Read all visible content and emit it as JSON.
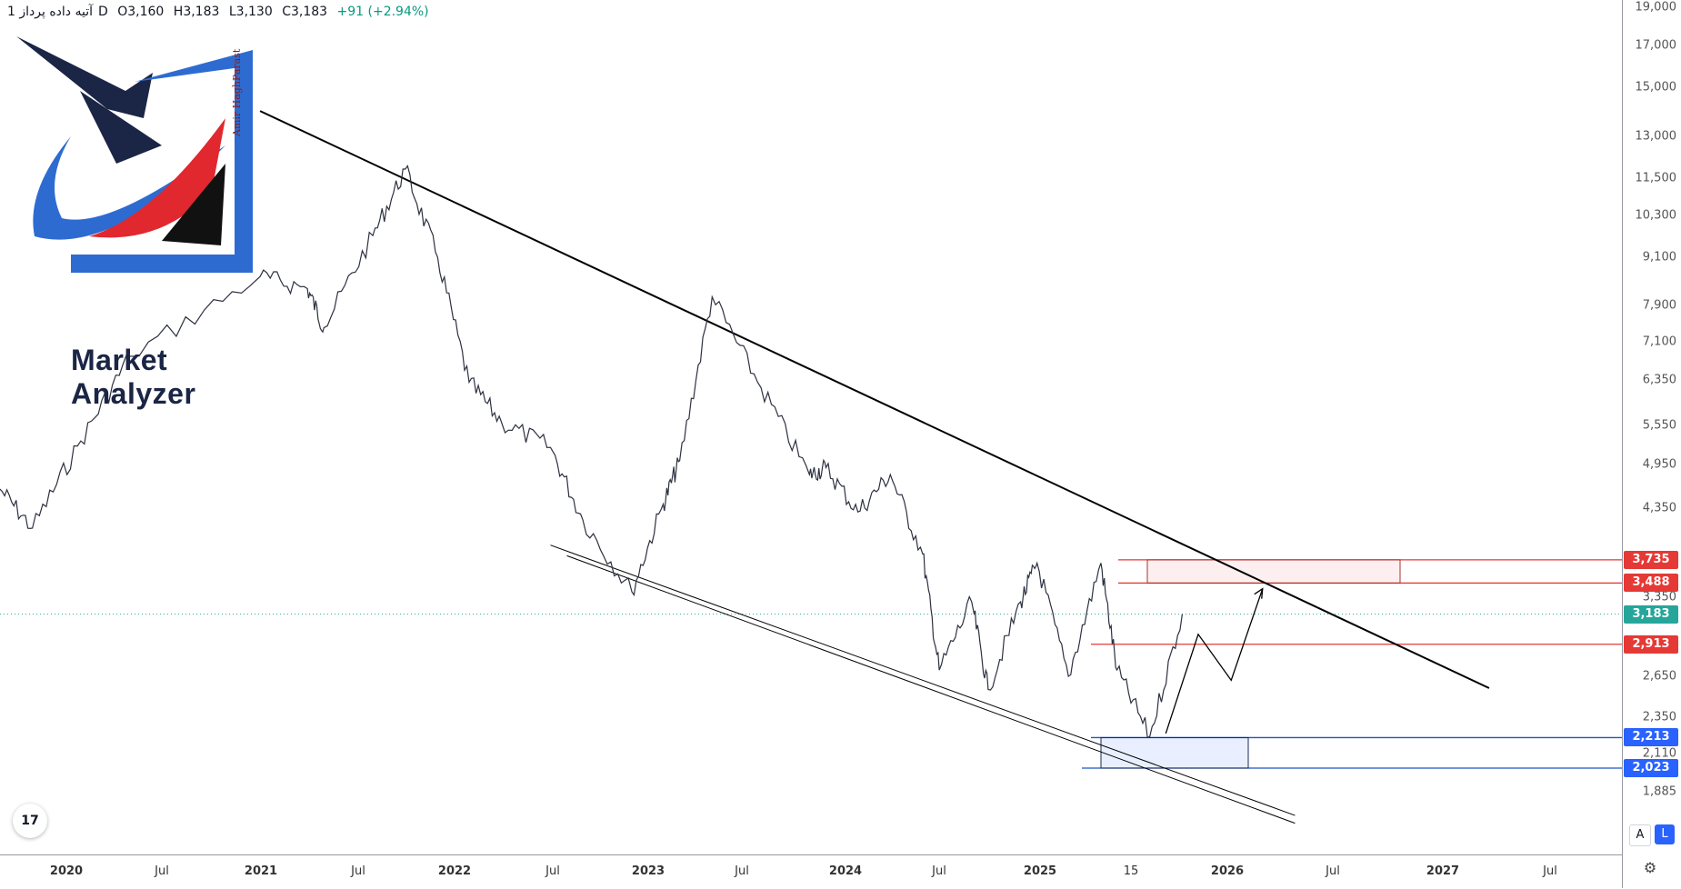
{
  "header": {
    "symbol": "آتیه داده پرداز",
    "interval": "1D",
    "open": "O3,160",
    "high": "H3,183",
    "low": "L3,130",
    "close": "C3,183",
    "change": "+91 (+2.94%)"
  },
  "logo": {
    "brand": "Market Analyzer",
    "author": "Amir HaghParast"
  },
  "buttons": {
    "auto": "A",
    "log": "L"
  },
  "tv_logo": "17",
  "colors": {
    "accent": "#2962ff",
    "red": "#e53935",
    "blue": "#1e55c8",
    "teal": "#26a69a",
    "trend": "#000000"
  },
  "chart_data": {
    "type": "line",
    "scale": "log",
    "ylim": [
      1700,
      19000
    ],
    "y_ticks": [
      "19,000",
      "17,000",
      "15,000",
      "13,000",
      "11,500",
      "10,300",
      "9,100",
      "7,900",
      "7,100",
      "6,350",
      "5,550",
      "4,950",
      "4,350",
      "3,350",
      "2,650",
      "2,350",
      "2,110",
      "1,885"
    ],
    "x_ticks": [
      "2020",
      "Jul",
      "2021",
      "Jul",
      "2022",
      "Jul",
      "2023",
      "Jul",
      "2024",
      "Jul",
      "2025",
      "15",
      "2026",
      "Jul",
      "2027",
      "Jul"
    ],
    "x": [
      "2019-10",
      "2019-12",
      "2020-03",
      "2020-06",
      "2021-02",
      "2021-05",
      "2021-06",
      "2021-09",
      "2021-11",
      "2022-01",
      "2022-03",
      "2022-05",
      "2022-08",
      "2022-10",
      "2023-01",
      "2023-03",
      "2023-04",
      "2023-06",
      "2023-09",
      "2023-12",
      "2024-01",
      "2024-03",
      "2024-05",
      "2024-07",
      "2024-08",
      "2024-10",
      "2024-11",
      "2025-01",
      "2025-02",
      "2025-04",
      "2025-06",
      "2025-07",
      "2025-09",
      "2025-11"
    ],
    "series": [
      {
        "values": [
          4600,
          4100,
          5300,
          6800,
          8600,
          8300,
          7400,
          9700,
          11800,
          9100,
          6300,
          5600,
          5200,
          4200,
          3400,
          4400,
          5000,
          8100,
          6200,
          4800,
          4900,
          4300,
          4800,
          3800,
          2700,
          3300,
          2550,
          3300,
          3700,
          2650,
          3700,
          2700,
          2220,
          3183
        ]
      }
    ],
    "price_labels": {
      "resist_top": "3,735",
      "resist_bottom": "3,488",
      "last": "3,183",
      "mid": "2,913",
      "support_top": "2,213",
      "support_bottom": "2,023"
    },
    "levels": {
      "resist_top": 3735,
      "resist_bottom": 3488,
      "last": 3183,
      "mid": 2913,
      "support_top": 2213,
      "support_bottom": 2023
    },
    "trendlines": [
      {
        "from": [
          "2021-02",
          14000
        ],
        "to": [
          "2027-06",
          2560
        ]
      },
      {
        "from": [
          "2022-08",
          3900
        ],
        "to": [
          "2026-06",
          1760
        ]
      },
      {
        "from": [
          "2022-09",
          3780
        ],
        "to": [
          "2026-06",
          1720
        ]
      }
    ],
    "projection": [
      [
        "2025-10",
        2240
      ],
      [
        "2025-12",
        3000
      ],
      [
        "2026-02",
        2620
      ],
      [
        "2026-04",
        3430
      ]
    ]
  }
}
